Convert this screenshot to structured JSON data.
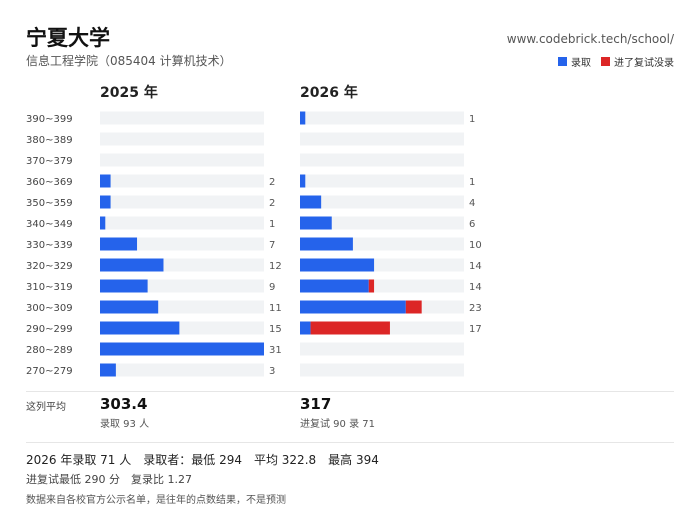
{
  "header": {
    "title": "宁夏大学",
    "subtitle": "信息工程学院（085404 计算机技术）",
    "site": "www.codebrick.tech/school/"
  },
  "legend": {
    "admitted": "录取",
    "not_admitted": "进了复试没录",
    "admitted_color": "#2563eb",
    "not_admitted_color": "#dc2626"
  },
  "chart_data": [
    {
      "type": "bar",
      "title": "2025 年",
      "categories": [
        "390~399",
        "380~389",
        "370~379",
        "360~369",
        "350~359",
        "340~349",
        "330~339",
        "320~329",
        "310~319",
        "300~309",
        "290~299",
        "280~289",
        "270~279"
      ],
      "series": [
        {
          "name": "录取",
          "values": [
            0,
            0,
            0,
            2,
            2,
            1,
            7,
            12,
            9,
            11,
            15,
            31,
            3
          ]
        }
      ],
      "totals": [
        0,
        0,
        0,
        2,
        2,
        1,
        7,
        12,
        9,
        11,
        15,
        31,
        3
      ],
      "xlim": [
        0,
        31
      ]
    },
    {
      "type": "bar",
      "title": "2026 年",
      "categories": [
        "390~399",
        "380~389",
        "370~379",
        "360~369",
        "350~359",
        "340~349",
        "330~339",
        "320~329",
        "310~319",
        "300~309",
        "290~299",
        "280~289",
        "270~279"
      ],
      "series": [
        {
          "name": "录取",
          "values": [
            1,
            0,
            0,
            1,
            4,
            6,
            10,
            14,
            13,
            20,
            2,
            0,
            0
          ]
        },
        {
          "name": "进了复试没录",
          "values": [
            0,
            0,
            0,
            0,
            0,
            0,
            0,
            0,
            1,
            3,
            15,
            0,
            0
          ]
        }
      ],
      "totals": [
        1,
        0,
        0,
        1,
        4,
        6,
        10,
        14,
        14,
        23,
        17,
        0,
        0
      ],
      "xlim": [
        0,
        31
      ]
    }
  ],
  "averages": {
    "row_label": "这列平均",
    "y2025": {
      "value": "303.4",
      "sub": "录取 93 人"
    },
    "y2026": {
      "value": "317",
      "sub": "进复试 90 录 71"
    }
  },
  "footer": {
    "line1": "2026 年录取 71 人　录取者：最低 294　平均 322.8　最高 394",
    "line2": "进复试最低 290 分　复录比 1.27",
    "line3": "数据来自各校官方公示名单，是往年的点数结果，不是预测"
  }
}
